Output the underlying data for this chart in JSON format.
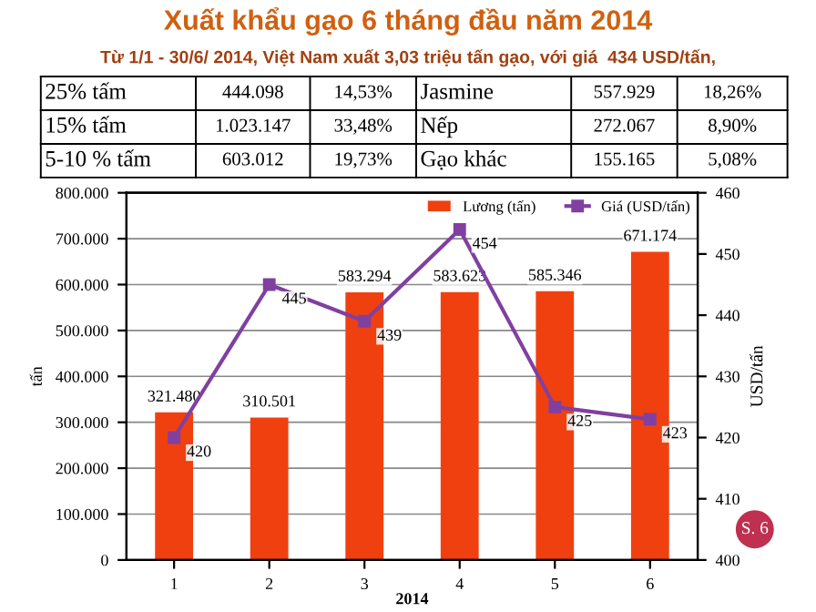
{
  "chart_data": {
    "type": "bar",
    "title": "Xuất khẩu gạo 6 tháng đầu năm 2014",
    "subtitle": "Từ 1/1 - 30/6/ 2014, Việt Nam xuất 3,03 triệu tấn gạo, với giá  434 USD/tấn,",
    "annotations": [
      "25% tấm",
      "444.098",
      "14,53%",
      "Jasmine",
      "557.929",
      "18,26%",
      "15% tấm",
      "1.023.147",
      "33,48%",
      "Nếp",
      "272.067",
      "8,90%",
      "5-10 % tấm",
      "603.012",
      "19,73%",
      "Gạo khác",
      "155.165",
      "5,08%",
      "S. 6"
    ],
    "categories": [
      "1",
      "2",
      "3",
      "4",
      "5",
      "6"
    ],
    "xlabel": "2014",
    "ylabel": "tấn",
    "y2label": "USD/tấn",
    "series": [
      {
        "name": "Lương (tấn)",
        "color": "#f04010",
        "values": [
          321480,
          310501,
          583294,
          583623,
          585346,
          671174
        ],
        "value_labels": [
          "321.480",
          "310.501",
          "583.294",
          "583.623",
          "585.346",
          "671.174"
        ]
      },
      {
        "name": "Giá (USD/tấn)",
        "type": "line",
        "axis": "y2",
        "color": "#8040a0",
        "marker": "square",
        "values": [
          420,
          445,
          439,
          454,
          425,
          423
        ],
        "value_labels": [
          "420",
          "445",
          "439",
          "454",
          "425",
          "423"
        ]
      }
    ],
    "ylim": [
      0,
      800000
    ],
    "yticks": [
      0,
      {
        "value": 100000,
        "label": "100.000"
      },
      {
        "value": 200000,
        "label": "200.000"
      },
      {
        "value": 300000,
        "label": "300.000"
      },
      {
        "value": 400000,
        "label": "400.000"
      },
      {
        "value": 500000,
        "label": "500.000"
      },
      {
        "value": 600000,
        "label": "600.000"
      },
      {
        "value": 700000,
        "label": "700.000"
      },
      {
        "value": 800000,
        "label": "800.000"
      }
    ],
    "y2lim": [
      400,
      460
    ],
    "y2ticks": [
      400,
      410,
      420,
      430,
      440,
      450,
      460
    ],
    "grid": "y",
    "legend": "top right"
  }
}
